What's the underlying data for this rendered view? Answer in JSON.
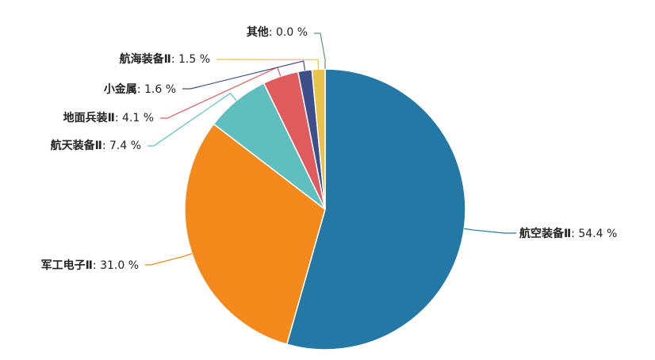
{
  "chart_data": {
    "type": "pie",
    "start": "top",
    "direction": "clockwise",
    "slices": [
      {
        "name": "航空装备Ⅱ",
        "value": 54.4,
        "label": "54.4 %",
        "color": "#2378a6"
      },
      {
        "name": "军工电子Ⅱ",
        "value": 31.0,
        "label": "31.0 %",
        "color": "#f48a1c"
      },
      {
        "name": "航天装备Ⅱ",
        "value": 7.4,
        "label": "7.4 %",
        "color": "#5fbfbf"
      },
      {
        "name": "地面兵装Ⅱ",
        "value": 4.1,
        "label": "4.1 %",
        "color": "#e05c5c"
      },
      {
        "name": "小金属",
        "value": 1.6,
        "label": "1.6 %",
        "color": "#3d4f8a"
      },
      {
        "name": "航海装备Ⅱ",
        "value": 1.5,
        "label": "1.5 %",
        "color": "#e8c24a"
      },
      {
        "name": "其他",
        "value": 0.0,
        "label": "0.0 %",
        "color": "#5a9a6b"
      }
    ]
  }
}
